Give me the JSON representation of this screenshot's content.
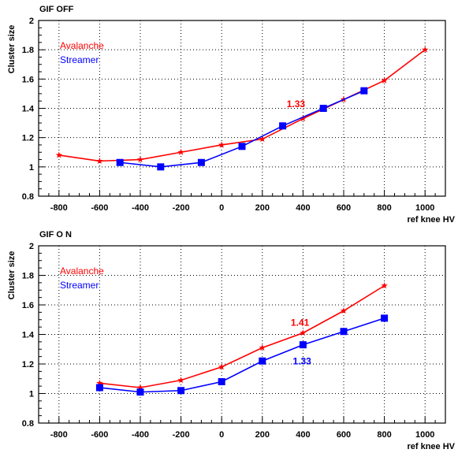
{
  "chart_data": [
    {
      "type": "line",
      "title": "GIF OFF",
      "xlabel": "ref  knee  HV",
      "ylabel": "Cluster  size",
      "xlim": [
        -900,
        1100
      ],
      "ylim": [
        0.8,
        2.0
      ],
      "x_ticks": [
        "-800",
        "-600",
        "-400",
        "-200",
        "0",
        "200",
        "400",
        "600",
        "800",
        "1000"
      ],
      "y_ticks": [
        "0.8",
        "1",
        "1.2",
        "1.4",
        "1.6",
        "1.8",
        "2"
      ],
      "grid": true,
      "legend_position": "top-left",
      "series": [
        {
          "name": "Avalanche",
          "color": "#ff0000",
          "marker": "star",
          "x": [
            -800,
            -600,
            -400,
            -200,
            0,
            200,
            400,
            600,
            800,
            1000
          ],
          "y": [
            1.08,
            1.04,
            1.05,
            1.1,
            1.15,
            1.19,
            1.33,
            1.46,
            1.59,
            1.8
          ]
        },
        {
          "name": "Streamer",
          "color": "#0000ff",
          "marker": "square",
          "x": [
            -500,
            -300,
            -100,
            100,
            300,
            500,
            700
          ],
          "y": [
            1.03,
            1.0,
            1.03,
            1.14,
            1.28,
            1.4,
            1.52
          ]
        }
      ],
      "annotations": [
        {
          "text": "1.33",
          "color": "#ff0000",
          "x": 320,
          "y": 1.43
        }
      ]
    },
    {
      "type": "line",
      "title": "GIF O N",
      "xlabel": "ref  knee  HV",
      "ylabel": "Cluster  size",
      "xlim": [
        -900,
        1100
      ],
      "ylim": [
        0.8,
        2.0
      ],
      "x_ticks": [
        "-800",
        "-600",
        "-400",
        "-200",
        "0",
        "200",
        "400",
        "600",
        "800",
        "1000"
      ],
      "y_ticks": [
        "0.8",
        "1",
        "1.2",
        "1.4",
        "1.6",
        "1.8",
        "2"
      ],
      "grid": true,
      "legend_position": "top-left",
      "series": [
        {
          "name": "Avalanche",
          "color": "#ff0000",
          "marker": "star",
          "x": [
            -600,
            -400,
            -200,
            0,
            200,
            400,
            600,
            800
          ],
          "y": [
            1.07,
            1.04,
            1.09,
            1.18,
            1.31,
            1.41,
            1.56,
            1.73
          ]
        },
        {
          "name": "Streamer",
          "color": "#0000ff",
          "marker": "square",
          "x": [
            -600,
            -400,
            -200,
            0,
            200,
            400,
            600,
            800
          ],
          "y": [
            1.04,
            1.01,
            1.02,
            1.08,
            1.22,
            1.33,
            1.42,
            1.51
          ]
        }
      ],
      "annotations": [
        {
          "text": "1.41",
          "color": "#ff0000",
          "x": 340,
          "y": 1.48
        },
        {
          "text": "1.33",
          "color": "#0000ff",
          "x": 350,
          "y": 1.22
        }
      ]
    }
  ]
}
